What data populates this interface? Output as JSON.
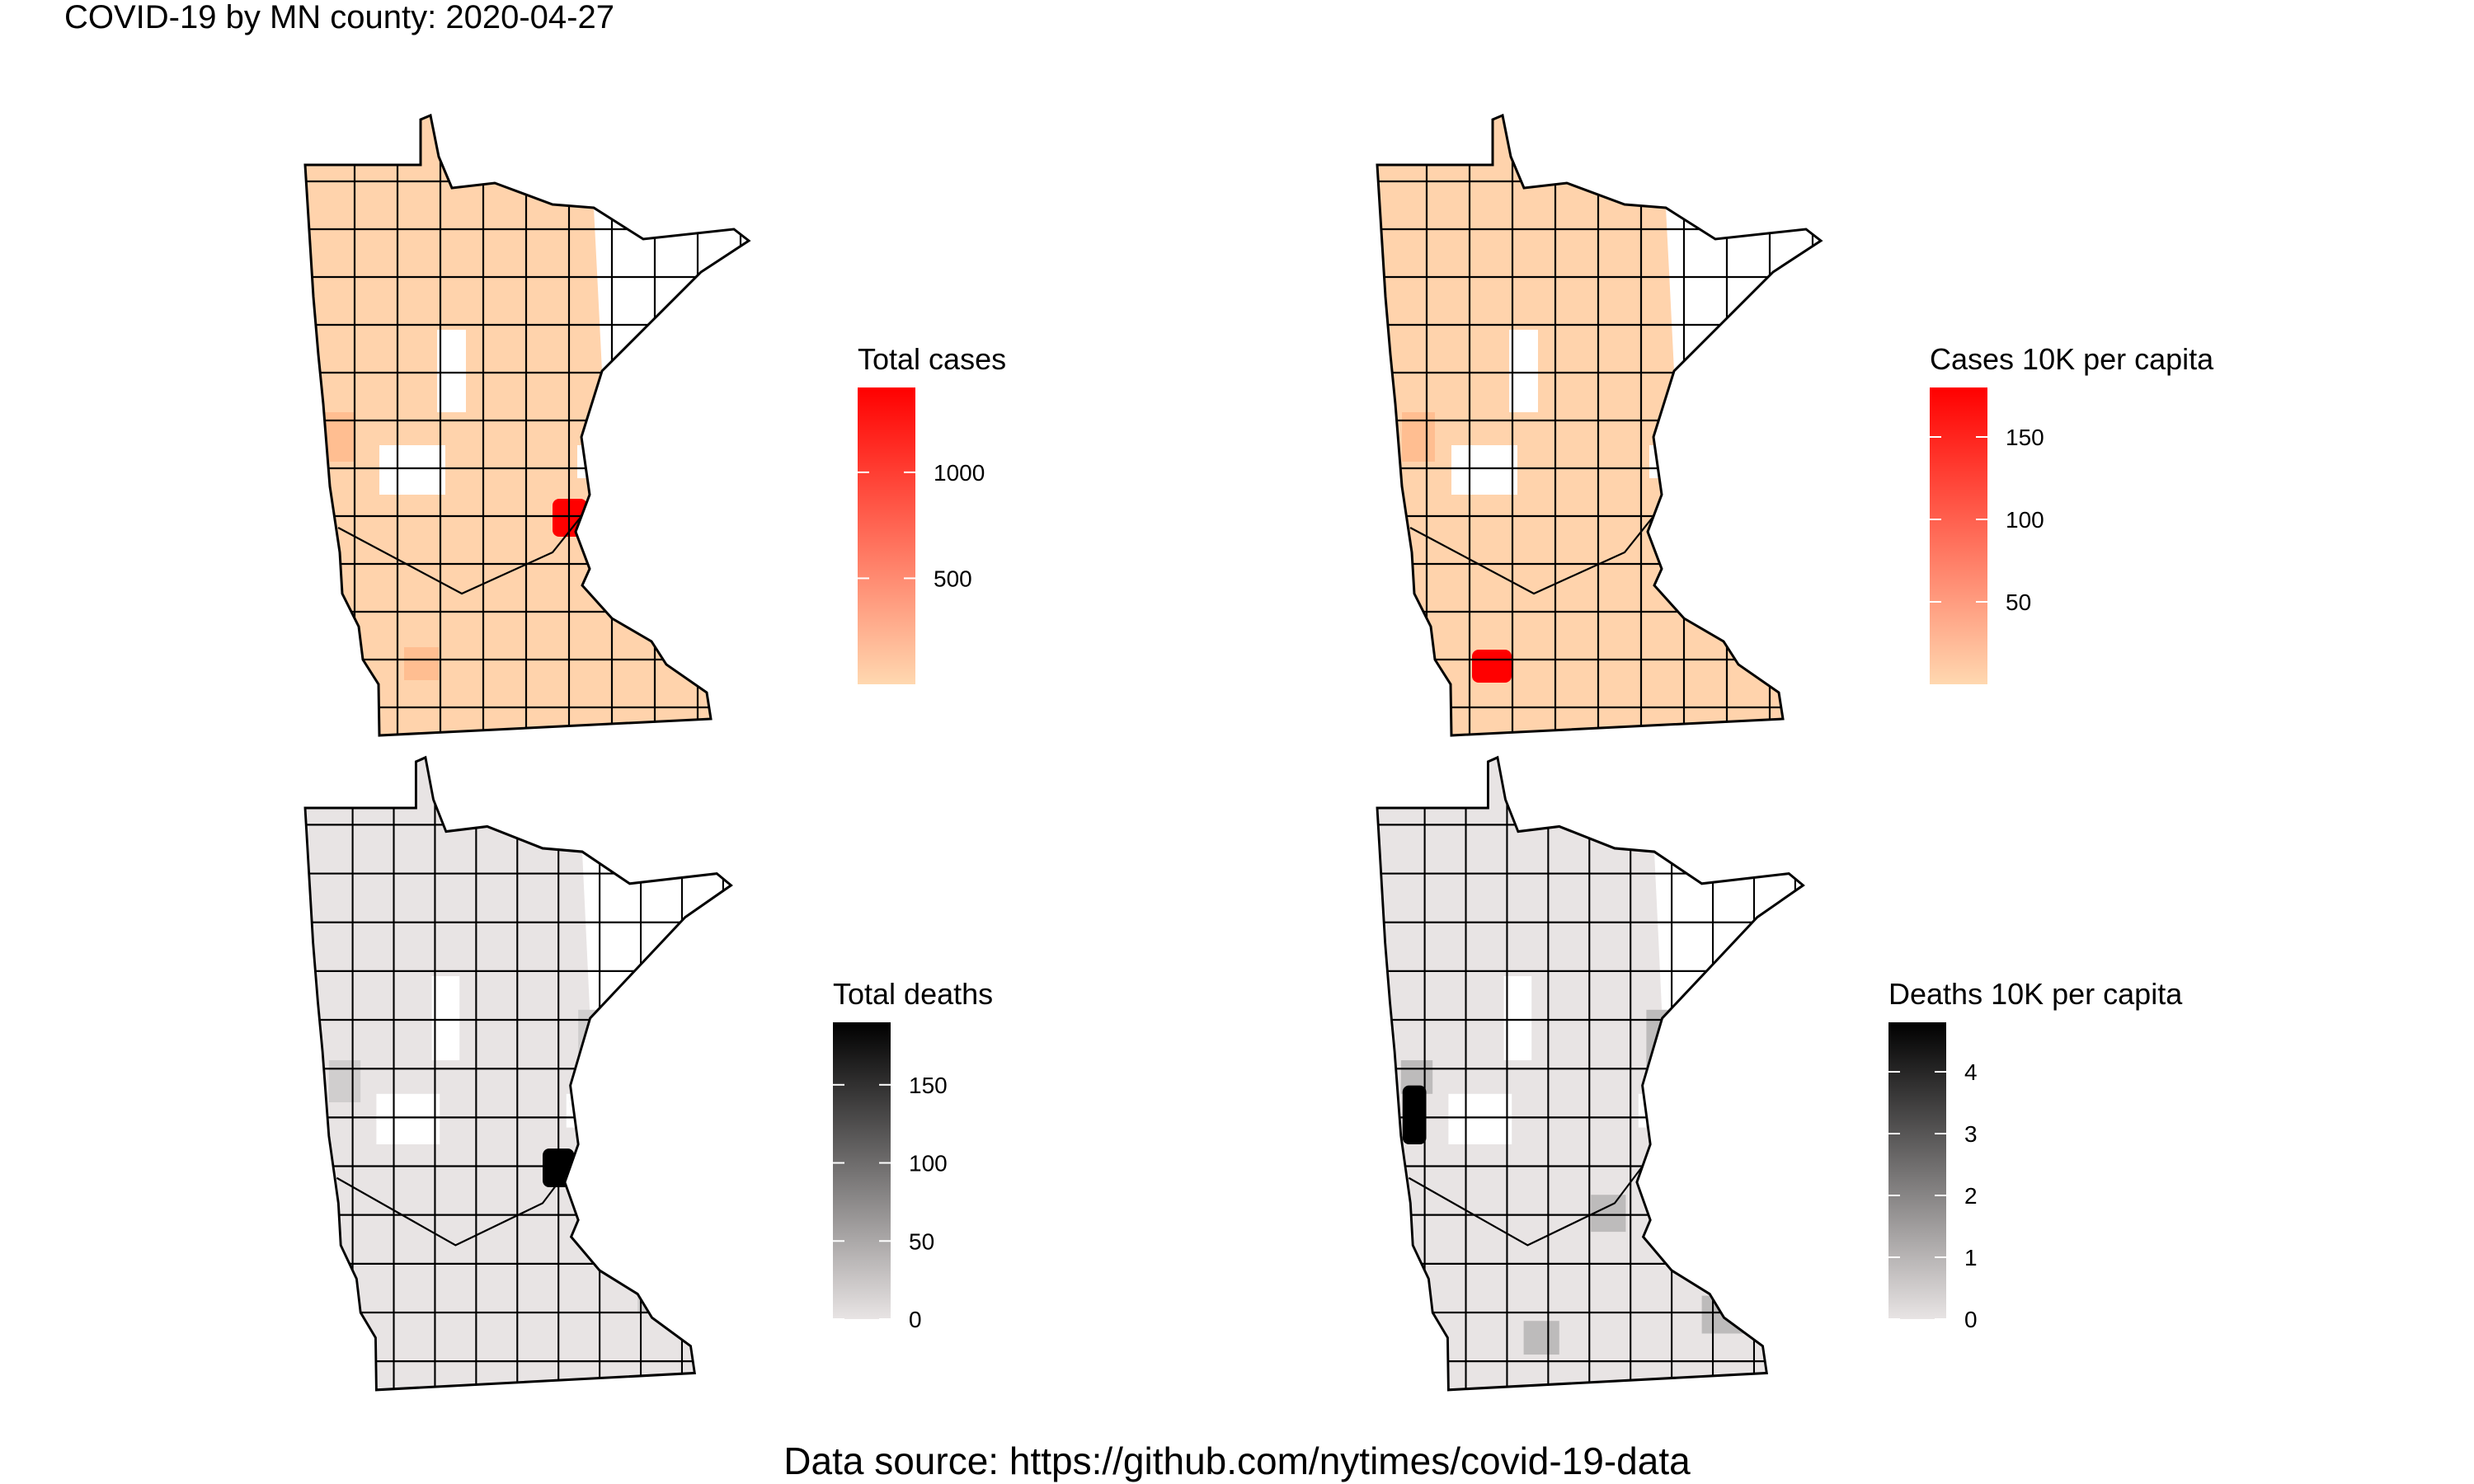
{
  "title": "COVID-19 by MN county: 2020-04-27",
  "caption": "Data source: https://github.com/nytimes/covid-19-data",
  "panels": [
    {
      "id": "total-cases",
      "legend_title": "Total cases",
      "gradient": [
        "#FFD8B0",
        "#FF0000"
      ],
      "domain": [
        0,
        1400
      ],
      "ticks": [
        {
          "label": "500",
          "value": 500
        },
        {
          "label": "1000",
          "value": 1000
        }
      ],
      "county_fills": {
        "base": "#FFD3AC",
        "moderate": "#FFBE91",
        "high": "#FF0000",
        "missing": "#FFFFFF"
      }
    },
    {
      "id": "cases-per-capita",
      "legend_title": "Cases 10K per capita",
      "gradient": [
        "#FFD8B0",
        "#FF0000"
      ],
      "domain": [
        0,
        180
      ],
      "ticks": [
        {
          "label": "50",
          "value": 50
        },
        {
          "label": "100",
          "value": 100
        },
        {
          "label": "150",
          "value": 150
        }
      ],
      "county_fills": {
        "base": "#FFD3AC",
        "moderate": "#FFBE91",
        "high": "#FF0000",
        "missing": "#FFFFFF"
      }
    },
    {
      "id": "total-deaths",
      "legend_title": "Total deaths",
      "gradient": [
        "#E8E4E4",
        "#000000"
      ],
      "domain": [
        0,
        190
      ],
      "ticks": [
        {
          "label": "0",
          "value": 0
        },
        {
          "label": "50",
          "value": 50
        },
        {
          "label": "100",
          "value": 100
        },
        {
          "label": "150",
          "value": 150
        }
      ],
      "county_fills": {
        "base": "#E8E4E4",
        "moderate": "#D0CECE",
        "high": "#000000",
        "missing": "#FFFFFF"
      }
    },
    {
      "id": "deaths-per-capita",
      "legend_title": "Deaths 10K per capita",
      "gradient": [
        "#E8E4E4",
        "#000000"
      ],
      "domain": [
        0,
        4.8
      ],
      "ticks": [
        {
          "label": "0",
          "value": 0
        },
        {
          "label": "1",
          "value": 1
        },
        {
          "label": "2",
          "value": 2
        },
        {
          "label": "3",
          "value": 3
        },
        {
          "label": "4",
          "value": 4
        }
      ],
      "county_fills": {
        "base": "#E8E4E4",
        "moderate": "#BDBBBB",
        "high": "#000000",
        "missing": "#FFFFFF"
      }
    }
  ]
}
